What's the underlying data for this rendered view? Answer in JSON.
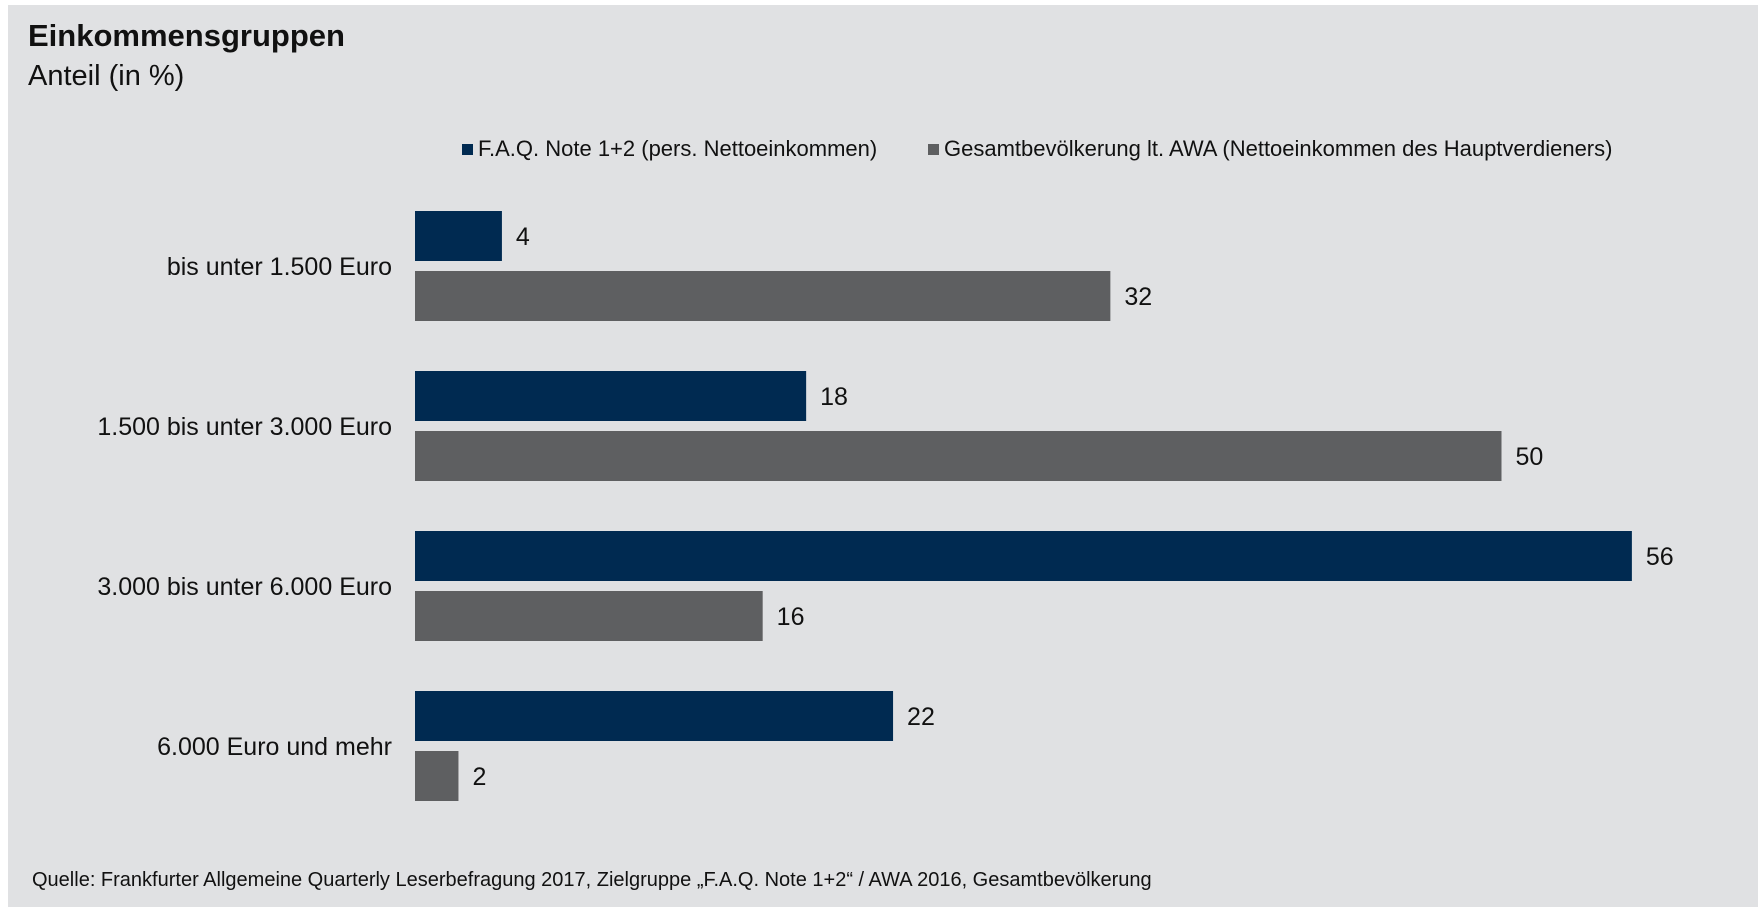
{
  "title": "Einkommensgruppen",
  "subtitle": "Anteil (in %)",
  "source": "Quelle: Frankfurter Allgemeine Quarterly Leserbefragung 2017, Zielgruppe „F.A.Q. Note 1+2“ / AWA 2016, Gesamtbevölkerung",
  "chart_data": {
    "type": "bar",
    "orientation": "horizontal",
    "categories": [
      "bis unter 1.500 Euro",
      "1.500 bis unter 3.000 Euro",
      "3.000 bis unter 6.000 Euro",
      "6.000 Euro und mehr"
    ],
    "series": [
      {
        "name": "F.A.Q. Note 1+2 (pers. Nettoeinkommen)",
        "color": "#002a51",
        "values": [
          4,
          18,
          56,
          22
        ]
      },
      {
        "name": "Gesamtbevölkerung lt. AWA (Nettoeinkommen des Hauptverdieners)",
        "color": "#5e5f61",
        "values": [
          32,
          50,
          16,
          2
        ]
      }
    ],
    "xlim": [
      0,
      56
    ],
    "grid": false,
    "legend_position": "top",
    "data_labels": true
  }
}
